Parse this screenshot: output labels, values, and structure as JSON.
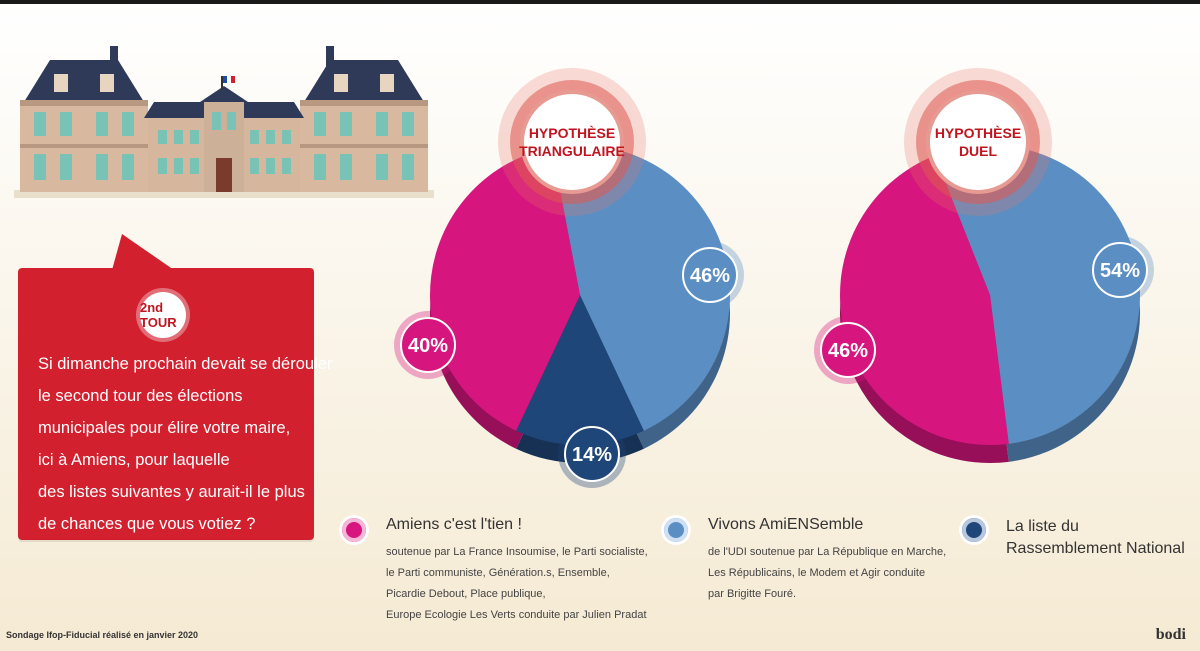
{
  "question": {
    "badge": "2nd TOUR",
    "lines": [
      "Si dimanche prochain devait se dérouler",
      "le second tour des élections",
      "municipales pour élire votre maire,",
      "ici à Amiens, pour laquelle",
      "des listes suivantes y aurait-il le plus",
      "de chances que vous votiez ?"
    ]
  },
  "chart_data": [
    {
      "type": "pie",
      "title": "HYPOTHÈSE TRIANGULAIRE",
      "title_lines": [
        "HYPOTHÈSE",
        "TRIANGULAIRE"
      ],
      "slices": [
        {
          "label": "Vivons AmiENSemble",
          "value": 46,
          "text": "46%",
          "color": "#5b8fc4"
        },
        {
          "label": "La liste du Rassemblement National",
          "value": 14,
          "text": "14%",
          "color": "#1f4678"
        },
        {
          "label": "Amiens c'est l'tien !",
          "value": 40,
          "text": "40%",
          "color": "#d6167e"
        }
      ]
    },
    {
      "type": "pie",
      "title": "HYPOTHÈSE DUEL",
      "title_lines": [
        "HYPOTHÈSE",
        "DUEL"
      ],
      "slices": [
        {
          "label": "Vivons AmiENSemble",
          "value": 54,
          "text": "54%",
          "color": "#5b8fc4"
        },
        {
          "label": "Amiens c'est l'tien !",
          "value": 46,
          "text": "46%",
          "color": "#d6167e"
        }
      ]
    }
  ],
  "legend": [
    {
      "title": "Amiens c'est l'tien !",
      "color": "#d6167e",
      "desc": [
        "soutenue par La France Insoumise, le Parti socialiste,",
        "le Parti communiste, Génération.s, Ensemble,",
        "Picardie Debout, Place publique,",
        "Europe Ecologie Les Verts conduite par Julien Pradat"
      ]
    },
    {
      "title": "Vivons AmiENSemble",
      "color": "#5b8fc4",
      "desc": [
        "de l'UDI soutenue par La République en Marche,",
        "Les Républicains, le Modem et Agir conduite",
        "par Brigitte Fouré."
      ]
    },
    {
      "title": "La liste du Rassemblement National",
      "title_lines": [
        "La liste du",
        "Rassemblement National"
      ],
      "color": "#1f4678",
      "desc": []
    }
  ],
  "source": "Sondage Ifop-Fiducial réalisé en janvier 2020",
  "brand": "bodi"
}
